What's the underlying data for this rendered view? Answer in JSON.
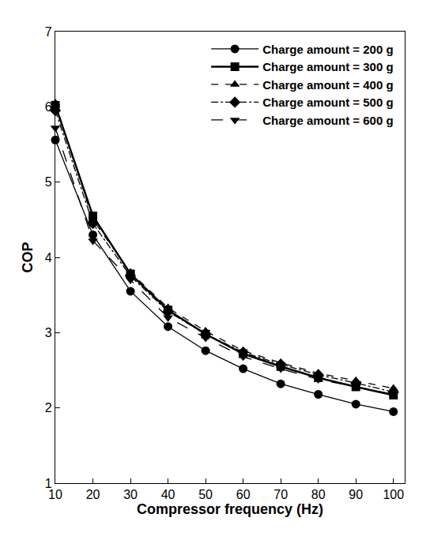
{
  "chart_data": {
    "type": "line",
    "x_label": "Compressor frequency (Hz)",
    "y_label": "COP",
    "x": [
      10,
      20,
      30,
      40,
      50,
      60,
      70,
      80,
      90,
      100
    ],
    "series": [
      {
        "name": "Charge amount = 200 g",
        "color": "#000000",
        "marker": "circle",
        "line_style": "solid",
        "values": [
          5.56,
          4.3,
          3.55,
          3.08,
          2.76,
          2.52,
          2.32,
          2.18,
          2.05,
          1.95
        ]
      },
      {
        "name": "Charge amount = 300 g",
        "color": "#000000",
        "marker": "square",
        "line_style": "solid",
        "values": [
          6.02,
          4.55,
          3.78,
          3.3,
          2.98,
          2.72,
          2.55,
          2.4,
          2.28,
          2.17
        ]
      },
      {
        "name": "Charge amount = 400 g",
        "color": "#000000",
        "marker": "triangle-up",
        "line_style": "dash",
        "values": [
          6.05,
          4.5,
          3.8,
          3.33,
          3.02,
          2.76,
          2.6,
          2.46,
          2.36,
          2.26
        ]
      },
      {
        "name": "Charge amount = 500 g",
        "color": "#000000",
        "marker": "diamond",
        "line_style": "dashdot",
        "values": [
          5.95,
          4.45,
          3.75,
          3.28,
          2.98,
          2.74,
          2.58,
          2.44,
          2.33,
          2.21
        ]
      },
      {
        "name": "Charge amount = 600 g",
        "color": "#000000",
        "marker": "triangle-down",
        "line_style": "longdash",
        "values": [
          5.72,
          4.22,
          3.7,
          3.2,
          2.93,
          2.68,
          2.52,
          2.38,
          2.28,
          2.18
        ]
      }
    ],
    "xlim": [
      10,
      103
    ],
    "xticks": [
      10,
      20,
      30,
      40,
      50,
      60,
      70,
      80,
      90,
      100
    ],
    "ylim": [
      1,
      7
    ],
    "yticks": [
      1,
      2,
      3,
      4,
      5,
      6,
      7
    ],
    "grid": false,
    "legend": "upper right"
  }
}
